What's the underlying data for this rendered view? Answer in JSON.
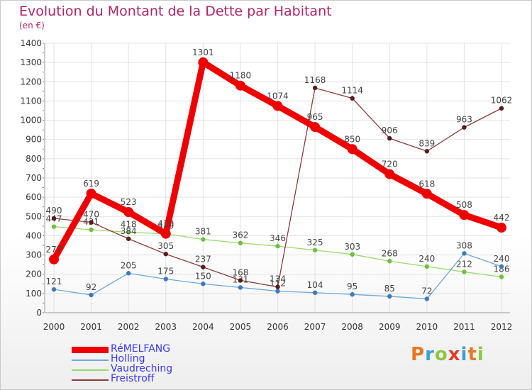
{
  "header": {
    "title": "Evolution du Montant de la Dette par Habitant",
    "subtitle": "(en €)"
  },
  "logo": {
    "text": "Proxiti",
    "letters": [
      {
        "char": "P",
        "color": "#e87722"
      },
      {
        "char": "r",
        "color": "#3aa0d8"
      },
      {
        "char": "o",
        "color": "#8dc63f"
      },
      {
        "char": "x",
        "color": "#e23c2c"
      },
      {
        "char": "i",
        "color": "#3aa0d8"
      },
      {
        "char": "t",
        "color": "#e87722"
      },
      {
        "char": "i",
        "color": "#8dc63f"
      }
    ]
  },
  "chart_data": {
    "type": "line",
    "x": [
      "2000",
      "2001",
      "2002",
      "2003",
      "2004",
      "2005",
      "2006",
      "2007",
      "2008",
      "2009",
      "2010",
      "2011",
      "2012"
    ],
    "ylim": [
      0,
      1400
    ],
    "yticks": [
      "0",
      "100",
      "200",
      "300",
      "400",
      "500",
      "600",
      "700",
      "800",
      "900",
      "1000",
      "1100",
      "1200",
      "1300",
      "1400"
    ],
    "grid": true,
    "legend_position": "bottom-left",
    "series": [
      {
        "name": "Vaudreching",
        "color": "#99d96b",
        "values": [
          447,
          431,
          418,
          410,
          381,
          362,
          346,
          325,
          303,
          268,
          240,
          212,
          186
        ],
        "labels": [
          "447",
          "431",
          "418",
          "410",
          "381",
          "362",
          "346",
          "325",
          "303",
          "268",
          "240",
          "212",
          "186"
        ]
      },
      {
        "name": "Holling",
        "color": "#6ea8d8",
        "values": [
          121,
          92,
          205,
          175,
          150,
          131,
          112,
          104,
          95,
          85,
          72,
          308,
          240
        ],
        "labels": [
          "121",
          "92",
          "205",
          "175",
          "150",
          "131",
          "112",
          "104",
          "95",
          "85",
          "72",
          "308",
          "240"
        ]
      },
      {
        "name": "Freistroff",
        "color": "#8b3c3c",
        "values": [
          490,
          470,
          384,
          305,
          237,
          168,
          134,
          1168,
          1114,
          906,
          839,
          963,
          1062
        ],
        "labels": [
          "490",
          "470",
          "384",
          "305",
          "237",
          "168",
          "134",
          "1168",
          "1114",
          "906",
          "839",
          "963",
          "1062"
        ]
      },
      {
        "name": "RéMELFANG",
        "color": "#ee0000",
        "values": [
          277,
          619,
          523,
          410,
          1301,
          1180,
          1074,
          965,
          850,
          720,
          618,
          508,
          442
        ],
        "labels": [
          "277",
          "619",
          "523",
          "410",
          "1301",
          "1180",
          "1074",
          "965",
          "850",
          "720",
          "618",
          "508",
          "442"
        ]
      }
    ],
    "legend": [
      "RéMELFANG",
      "Holling",
      "Vaudreching",
      "Freistroff"
    ]
  }
}
